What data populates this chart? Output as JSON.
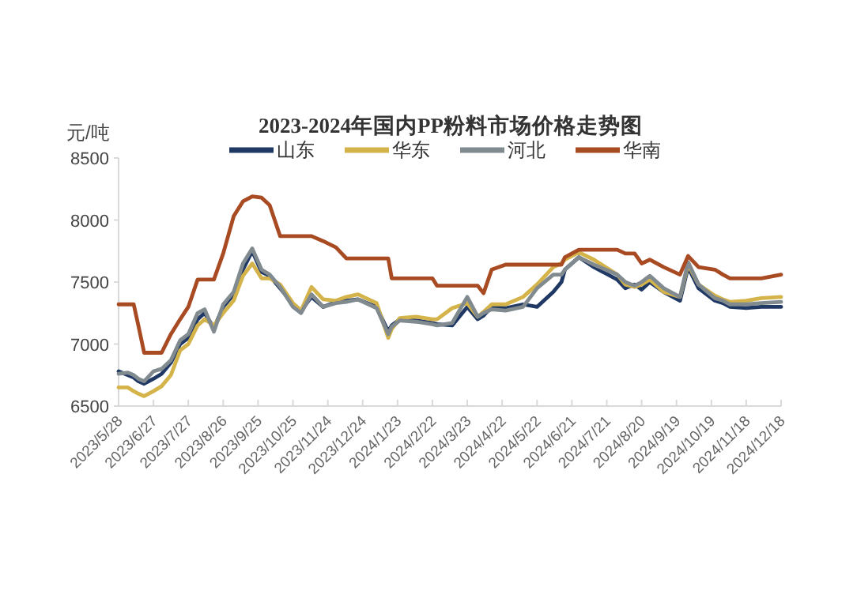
{
  "chart_data": {
    "type": "line",
    "title": "2023-2024年国内PP粉料市场价格走势图",
    "ylabel": "元/吨",
    "legend": "top",
    "x": [
      "2023-05-28",
      "2023-06-05",
      "2023-06-10",
      "2023-06-14",
      "2023-06-19",
      "2023-06-27",
      "2023-07-04",
      "2023-07-12",
      "2023-07-20",
      "2023-07-27",
      "2023-08-04",
      "2023-08-10",
      "2023-08-18",
      "2023-08-26",
      "2023-09-04",
      "2023-09-12",
      "2023-09-20",
      "2023-09-28",
      "2023-10-05",
      "2023-10-14",
      "2023-10-25",
      "2023-11-01",
      "2023-11-10",
      "2023-11-20",
      "2023-12-01",
      "2023-12-10",
      "2023-12-20",
      "2024-01-05",
      "2024-01-15",
      "2024-01-18",
      "2024-01-25",
      "2024-02-08",
      "2024-02-22",
      "2024-02-26",
      "2024-03-10",
      "2024-03-23",
      "2024-04-01",
      "2024-04-06",
      "2024-04-13",
      "2024-04-25",
      "2024-05-10",
      "2024-05-22",
      "2024-06-05",
      "2024-06-12",
      "2024-06-15",
      "2024-06-27",
      "2024-07-10",
      "2024-07-30",
      "2024-08-06",
      "2024-08-14",
      "2024-08-20",
      "2024-08-27",
      "2024-09-08",
      "2024-09-22",
      "2024-09-29",
      "2024-10-08",
      "2024-10-22",
      "2024-10-29",
      "2024-11-04",
      "2024-11-18",
      "2024-12-01",
      "2024-12-18"
    ],
    "series": [
      {
        "name": "山东",
        "color": "#1f3864",
        "values": [
          6780,
          6750,
          6730,
          6700,
          6680,
          6720,
          6760,
          6850,
          7000,
          7050,
          7200,
          7250,
          7130,
          7300,
          7400,
          7600,
          7750,
          7580,
          7550,
          7450,
          7320,
          7270,
          7380,
          7300,
          7340,
          7350,
          7360,
          7300,
          7100,
          7150,
          7200,
          7190,
          7170,
          7160,
          7150,
          7300,
          7200,
          7230,
          7300,
          7290,
          7320,
          7300,
          7420,
          7500,
          7600,
          7700,
          7620,
          7520,
          7450,
          7480,
          7440,
          7500,
          7420,
          7350,
          7620,
          7450,
          7350,
          7330,
          7300,
          7290,
          7300,
          7300
        ]
      },
      {
        "name": "华东",
        "color": "#d4b44a",
        "values": [
          6650,
          6650,
          6620,
          6600,
          6580,
          6620,
          6660,
          6750,
          6950,
          7000,
          7150,
          7200,
          7150,
          7250,
          7350,
          7550,
          7650,
          7530,
          7530,
          7480,
          7330,
          7270,
          7460,
          7360,
          7350,
          7380,
          7400,
          7330,
          7050,
          7120,
          7210,
          7220,
          7200,
          7200,
          7290,
          7330,
          7220,
          7260,
          7320,
          7320,
          7380,
          7480,
          7620,
          7650,
          7680,
          7740,
          7680,
          7560,
          7480,
          7460,
          7480,
          7520,
          7420,
          7380,
          7640,
          7480,
          7390,
          7360,
          7340,
          7350,
          7370,
          7380
        ]
      },
      {
        "name": "河北",
        "color": "#808a8f",
        "values": [
          6760,
          6770,
          6750,
          6720,
          6700,
          6780,
          6800,
          6870,
          7030,
          7080,
          7250,
          7280,
          7100,
          7320,
          7420,
          7650,
          7770,
          7600,
          7560,
          7460,
          7300,
          7250,
          7400,
          7300,
          7330,
          7340,
          7360,
          7290,
          7080,
          7140,
          7190,
          7180,
          7160,
          7150,
          7170,
          7380,
          7220,
          7250,
          7280,
          7270,
          7300,
          7450,
          7560,
          7560,
          7600,
          7700,
          7640,
          7560,
          7500,
          7470,
          7500,
          7550,
          7450,
          7380,
          7660,
          7480,
          7370,
          7350,
          7320,
          7320,
          7330,
          7340
        ]
      },
      {
        "name": "华南",
        "color": "#a84a22",
        "values": [
          7320,
          7320,
          7320,
          7150,
          6930,
          6930,
          6930,
          7080,
          7200,
          7300,
          7520,
          7520,
          7520,
          7730,
          8030,
          8150,
          8190,
          8180,
          8120,
          7870,
          7870,
          7870,
          7870,
          7830,
          7780,
          7690,
          7690,
          7690,
          7690,
          7530,
          7530,
          7530,
          7530,
          7470,
          7470,
          7470,
          7470,
          7410,
          7600,
          7640,
          7640,
          7640,
          7640,
          7640,
          7700,
          7760,
          7760,
          7760,
          7730,
          7730,
          7650,
          7680,
          7620,
          7560,
          7710,
          7620,
          7600,
          7560,
          7530,
          7530,
          7530,
          7560
        ]
      }
    ],
    "xlim": [
      "2023-05-28",
      "2024-12-18"
    ],
    "xticks": [
      {
        "value": "2023-05-28",
        "label": "2023/5/28"
      },
      {
        "value": "2023-06-27",
        "label": "2023/6/27"
      },
      {
        "value": "2023-07-27",
        "label": "2023/7/27"
      },
      {
        "value": "2023-08-26",
        "label": "2023/8/26"
      },
      {
        "value": "2023-09-25",
        "label": "2023/9/25"
      },
      {
        "value": "2023-10-25",
        "label": "2023/10/25"
      },
      {
        "value": "2023-11-24",
        "label": "2023/11/24"
      },
      {
        "value": "2023-12-24",
        "label": "2023/12/24"
      },
      {
        "value": "2024-01-23",
        "label": "2024/1/23"
      },
      {
        "value": "2024-02-22",
        "label": "2024/2/22"
      },
      {
        "value": "2024-03-23",
        "label": "2024/3/23"
      },
      {
        "value": "2024-04-22",
        "label": "2024/4/22"
      },
      {
        "value": "2024-05-22",
        "label": "2024/5/22"
      },
      {
        "value": "2024-06-21",
        "label": "2024/6/21"
      },
      {
        "value": "2024-07-21",
        "label": "2024/7/21"
      },
      {
        "value": "2024-08-20",
        "label": "2024/8/20"
      },
      {
        "value": "2024-09-19",
        "label": "2024/9/19"
      },
      {
        "value": "2024-10-19",
        "label": "2024/10/19"
      },
      {
        "value": "2024-11-18",
        "label": "2024/11/18"
      },
      {
        "value": "2024-12-18",
        "label": "2024/12/18"
      }
    ],
    "ylim": [
      6500,
      8500
    ],
    "yticks": [
      6500,
      7000,
      7500,
      8000,
      8500
    ]
  }
}
